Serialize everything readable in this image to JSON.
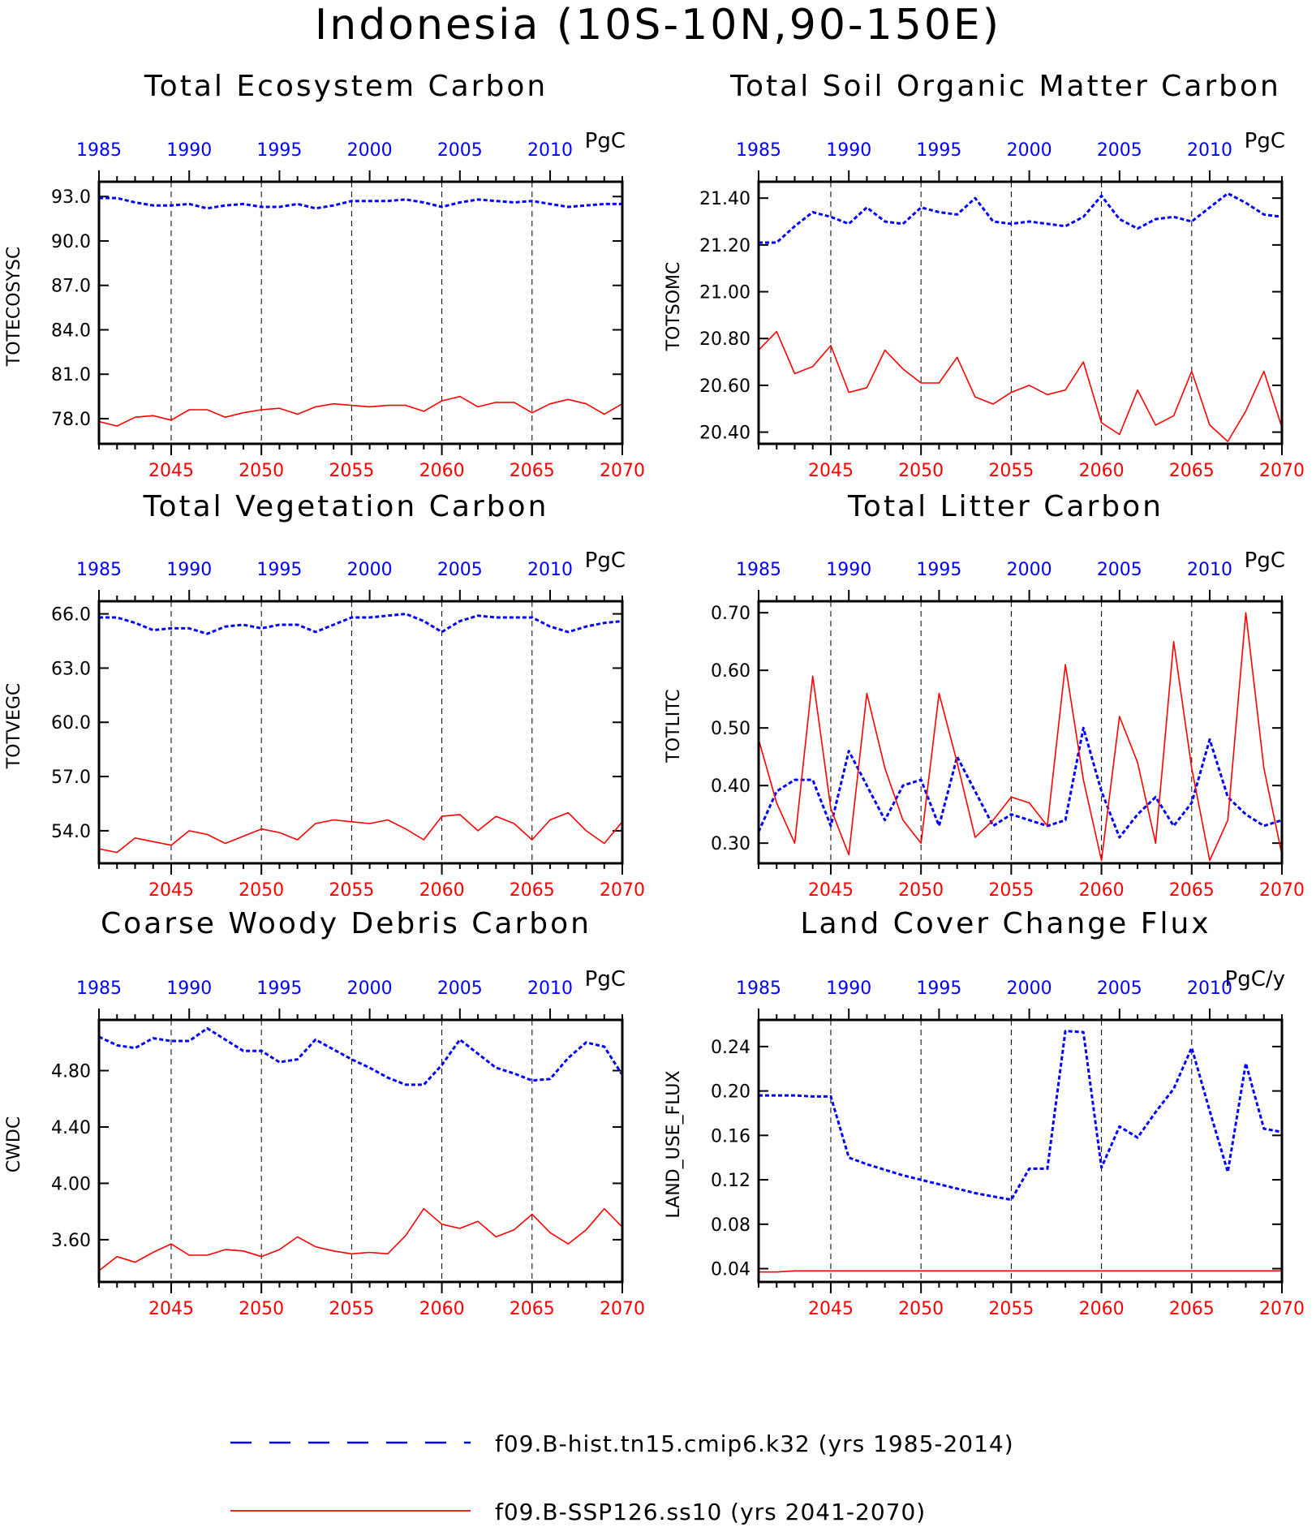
{
  "title": "Indonesia (10S-10N,90-150E)",
  "colors": {
    "hist": "#0000ff",
    "ssp": "#ff0000",
    "axis": "#000000"
  },
  "legend": [
    {
      "label": "f09.B-hist.tn15.cmip6.k32 (yrs 1985-2014)",
      "color": "#0000ff",
      "style": "dashed"
    },
    {
      "label": "f09.B-SSP126.ss10 (yrs 2041-2070)",
      "color": "#ff0000",
      "style": "solid"
    }
  ],
  "top_axis_ticks": [
    "1985",
    "1990",
    "1995",
    "2000",
    "2005",
    "2010"
  ],
  "bottom_axis_ticks": [
    "2045",
    "2050",
    "2055",
    "2060",
    "2065",
    "2070"
  ],
  "chart_data": [
    {
      "type": "line",
      "title": "Total Ecosystem Carbon",
      "ylabel": "TOTECOSYSC",
      "units": "PgC",
      "ylim": [
        76.3,
        94.0
      ],
      "yticks": [
        78.0,
        81.0,
        84.0,
        87.0,
        90.0,
        93.0
      ],
      "ytick_labels": [
        "78.0",
        "81.0",
        "84.0",
        "87.0",
        "90.0",
        "93.0"
      ],
      "x_top": [
        1985,
        1986,
        1987,
        1988,
        1989,
        1990,
        1991,
        1992,
        1993,
        1994,
        1995,
        1996,
        1997,
        1998,
        1999,
        2000,
        2001,
        2002,
        2003,
        2004,
        2005,
        2006,
        2007,
        2008,
        2009,
        2010,
        2011,
        2012,
        2013,
        2014
      ],
      "x_bottom": [
        2041,
        2042,
        2043,
        2044,
        2045,
        2046,
        2047,
        2048,
        2049,
        2050,
        2051,
        2052,
        2053,
        2054,
        2055,
        2056,
        2057,
        2058,
        2059,
        2060,
        2061,
        2062,
        2063,
        2064,
        2065,
        2066,
        2067,
        2068,
        2069,
        2070
      ],
      "series": [
        {
          "name": "f09.B-hist.tn15.cmip6.k32 (yrs 1985-2014)",
          "axis": "top",
          "values": [
            92.9,
            92.9,
            92.6,
            92.4,
            92.4,
            92.5,
            92.2,
            92.4,
            92.5,
            92.3,
            92.3,
            92.5,
            92.2,
            92.4,
            92.7,
            92.7,
            92.7,
            92.8,
            92.6,
            92.3,
            92.6,
            92.8,
            92.7,
            92.6,
            92.7,
            92.5,
            92.3,
            92.4,
            92.5,
            92.5
          ]
        },
        {
          "name": "f09.B-SSP126.ss10 (yrs 2041-2070)",
          "axis": "bottom",
          "values": [
            77.8,
            77.5,
            78.1,
            78.2,
            77.9,
            78.6,
            78.6,
            78.1,
            78.4,
            78.6,
            78.7,
            78.3,
            78.8,
            79.0,
            78.9,
            78.8,
            78.9,
            78.9,
            78.5,
            79.2,
            79.5,
            78.8,
            79.1,
            79.1,
            78.4,
            79.0,
            79.3,
            79.0,
            78.3,
            79.0
          ]
        }
      ]
    },
    {
      "type": "line",
      "title": "Total Soil Organic Matter Carbon",
      "ylabel": "TOTSOMC",
      "units": "PgC",
      "ylim": [
        20.35,
        21.47
      ],
      "yticks": [
        20.4,
        20.6,
        20.8,
        21.0,
        21.2,
        21.4
      ],
      "ytick_labels": [
        "20.40",
        "20.60",
        "20.80",
        "21.00",
        "21.20",
        "21.40"
      ],
      "x_top": [
        1985,
        1986,
        1987,
        1988,
        1989,
        1990,
        1991,
        1992,
        1993,
        1994,
        1995,
        1996,
        1997,
        1998,
        1999,
        2000,
        2001,
        2002,
        2003,
        2004,
        2005,
        2006,
        2007,
        2008,
        2009,
        2010,
        2011,
        2012,
        2013,
        2014
      ],
      "x_bottom": [
        2041,
        2042,
        2043,
        2044,
        2045,
        2046,
        2047,
        2048,
        2049,
        2050,
        2051,
        2052,
        2053,
        2054,
        2055,
        2056,
        2057,
        2058,
        2059,
        2060,
        2061,
        2062,
        2063,
        2064,
        2065,
        2066,
        2067,
        2068,
        2069,
        2070
      ],
      "series": [
        {
          "name": "f09.B-hist.tn15.cmip6.k32 (yrs 1985-2014)",
          "axis": "top",
          "values": [
            21.21,
            21.21,
            21.28,
            21.34,
            21.32,
            21.29,
            21.36,
            21.3,
            21.29,
            21.36,
            21.34,
            21.33,
            21.4,
            21.3,
            21.29,
            21.3,
            21.29,
            21.28,
            21.32,
            21.41,
            21.31,
            21.27,
            21.31,
            21.32,
            21.3,
            21.36,
            21.42,
            21.38,
            21.33,
            21.32
          ]
        },
        {
          "name": "f09.B-SSP126.ss10 (yrs 2041-2070)",
          "axis": "bottom",
          "values": [
            20.75,
            20.83,
            20.65,
            20.68,
            20.77,
            20.57,
            20.59,
            20.75,
            20.67,
            20.61,
            20.61,
            20.72,
            20.55,
            20.52,
            20.57,
            20.6,
            20.56,
            20.58,
            20.7,
            20.44,
            20.39,
            20.58,
            20.43,
            20.47,
            20.66,
            20.43,
            20.36,
            20.49,
            20.66,
            20.42
          ]
        }
      ]
    },
    {
      "type": "line",
      "title": "Total Vegetation Carbon",
      "ylabel": "TOTVEGC",
      "units": "PgC",
      "ylim": [
        52.2,
        66.7
      ],
      "yticks": [
        54.0,
        57.0,
        60.0,
        63.0,
        66.0
      ],
      "ytick_labels": [
        "54.0",
        "57.0",
        "60.0",
        "63.0",
        "66.0"
      ],
      "x_top": [
        1985,
        1986,
        1987,
        1988,
        1989,
        1990,
        1991,
        1992,
        1993,
        1994,
        1995,
        1996,
        1997,
        1998,
        1999,
        2000,
        2001,
        2002,
        2003,
        2004,
        2005,
        2006,
        2007,
        2008,
        2009,
        2010,
        2011,
        2012,
        2013,
        2014
      ],
      "x_bottom": [
        2041,
        2042,
        2043,
        2044,
        2045,
        2046,
        2047,
        2048,
        2049,
        2050,
        2051,
        2052,
        2053,
        2054,
        2055,
        2056,
        2057,
        2058,
        2059,
        2060,
        2061,
        2062,
        2063,
        2064,
        2065,
        2066,
        2067,
        2068,
        2069,
        2070
      ],
      "series": [
        {
          "name": "f09.B-hist.tn15.cmip6.k32 (yrs 1985-2014)",
          "axis": "top",
          "values": [
            65.8,
            65.8,
            65.5,
            65.1,
            65.2,
            65.2,
            64.9,
            65.3,
            65.4,
            65.2,
            65.4,
            65.4,
            65.0,
            65.4,
            65.8,
            65.8,
            65.9,
            66.0,
            65.6,
            65.0,
            65.6,
            65.9,
            65.8,
            65.8,
            65.8,
            65.3,
            65.0,
            65.3,
            65.5,
            65.6
          ]
        },
        {
          "name": "f09.B-SSP126.ss10 (yrs 2041-2070)",
          "axis": "bottom",
          "values": [
            53.0,
            52.8,
            53.6,
            53.4,
            53.2,
            54.0,
            53.8,
            53.3,
            53.7,
            54.1,
            53.9,
            53.5,
            54.4,
            54.6,
            54.5,
            54.4,
            54.6,
            54.1,
            53.5,
            54.8,
            54.9,
            54.0,
            54.8,
            54.4,
            53.5,
            54.6,
            55.0,
            54.0,
            53.3,
            54.5
          ]
        }
      ]
    },
    {
      "type": "line",
      "title": "Total Litter Carbon",
      "ylabel": "TOTLITC",
      "units": "PgC",
      "ylim": [
        0.265,
        0.72
      ],
      "yticks": [
        0.3,
        0.4,
        0.5,
        0.6,
        0.7
      ],
      "ytick_labels": [
        "0.30",
        "0.40",
        "0.50",
        "0.60",
        "0.70"
      ],
      "x_top": [
        1985,
        1986,
        1987,
        1988,
        1989,
        1990,
        1991,
        1992,
        1993,
        1994,
        1995,
        1996,
        1997,
        1998,
        1999,
        2000,
        2001,
        2002,
        2003,
        2004,
        2005,
        2006,
        2007,
        2008,
        2009,
        2010,
        2011,
        2012,
        2013,
        2014
      ],
      "x_bottom": [
        2041,
        2042,
        2043,
        2044,
        2045,
        2046,
        2047,
        2048,
        2049,
        2050,
        2051,
        2052,
        2053,
        2054,
        2055,
        2056,
        2057,
        2058,
        2059,
        2060,
        2061,
        2062,
        2063,
        2064,
        2065,
        2066,
        2067,
        2068,
        2069,
        2070
      ],
      "series": [
        {
          "name": "f09.B-hist.tn15.cmip6.k32 (yrs 1985-2014)",
          "axis": "top",
          "values": [
            0.32,
            0.39,
            0.41,
            0.41,
            0.33,
            0.46,
            0.4,
            0.34,
            0.4,
            0.41,
            0.33,
            0.45,
            0.39,
            0.33,
            0.35,
            0.34,
            0.33,
            0.34,
            0.5,
            0.39,
            0.31,
            0.35,
            0.38,
            0.33,
            0.37,
            0.48,
            0.38,
            0.35,
            0.33,
            0.34
          ]
        },
        {
          "name": "f09.B-SSP126.ss10 (yrs 2041-2070)",
          "axis": "bottom",
          "values": [
            0.48,
            0.37,
            0.3,
            0.59,
            0.36,
            0.28,
            0.56,
            0.43,
            0.34,
            0.3,
            0.56,
            0.44,
            0.31,
            0.34,
            0.38,
            0.37,
            0.33,
            0.61,
            0.41,
            0.27,
            0.52,
            0.44,
            0.3,
            0.65,
            0.43,
            0.27,
            0.34,
            0.7,
            0.43,
            0.28
          ]
        }
      ]
    },
    {
      "type": "line",
      "title": "Coarse Woody Debris Carbon",
      "ylabel": "CWDC",
      "units": "PgC",
      "ylim": [
        3.3,
        5.16
      ],
      "yticks": [
        3.6,
        4.0,
        4.4,
        4.8
      ],
      "ytick_labels": [
        "3.60",
        "4.00",
        "4.40",
        "4.80"
      ],
      "x_top": [
        1985,
        1986,
        1987,
        1988,
        1989,
        1990,
        1991,
        1992,
        1993,
        1994,
        1995,
        1996,
        1997,
        1998,
        1999,
        2000,
        2001,
        2002,
        2003,
        2004,
        2005,
        2006,
        2007,
        2008,
        2009,
        2010,
        2011,
        2012,
        2013,
        2014
      ],
      "x_bottom": [
        2041,
        2042,
        2043,
        2044,
        2045,
        2046,
        2047,
        2048,
        2049,
        2050,
        2051,
        2052,
        2053,
        2054,
        2055,
        2056,
        2057,
        2058,
        2059,
        2060,
        2061,
        2062,
        2063,
        2064,
        2065,
        2066,
        2067,
        2068,
        2069,
        2070
      ],
      "series": [
        {
          "name": "f09.B-hist.tn15.cmip6.k32 (yrs 1985-2014)",
          "axis": "top",
          "values": [
            5.04,
            4.98,
            4.96,
            5.03,
            5.01,
            5.01,
            5.1,
            5.02,
            4.94,
            4.94,
            4.86,
            4.88,
            5.02,
            4.95,
            4.88,
            4.82,
            4.75,
            4.7,
            4.7,
            4.84,
            5.02,
            4.92,
            4.82,
            4.78,
            4.73,
            4.74,
            4.89,
            5.0,
            4.97,
            4.77
          ]
        },
        {
          "name": "f09.B-SSP126.ss10 (yrs 2041-2070)",
          "axis": "bottom",
          "values": [
            3.38,
            3.48,
            3.44,
            3.51,
            3.57,
            3.49,
            3.49,
            3.53,
            3.52,
            3.48,
            3.53,
            3.62,
            3.55,
            3.52,
            3.5,
            3.51,
            3.5,
            3.63,
            3.82,
            3.71,
            3.68,
            3.73,
            3.62,
            3.67,
            3.78,
            3.65,
            3.57,
            3.67,
            3.82,
            3.69
          ]
        }
      ]
    },
    {
      "type": "line",
      "title": "Land Cover Change Flux",
      "ylabel": "LAND_USE_FLUX",
      "units": "PgC/y",
      "ylim": [
        0.028,
        0.264
      ],
      "yticks": [
        0.04,
        0.08,
        0.12,
        0.16,
        0.2,
        0.24
      ],
      "ytick_labels": [
        "0.04",
        "0.08",
        "0.12",
        "0.16",
        "0.20",
        "0.24"
      ],
      "x_top": [
        1985,
        1986,
        1987,
        1988,
        1989,
        1990,
        1991,
        1992,
        1993,
        1994,
        1995,
        1996,
        1997,
        1998,
        1999,
        2000,
        2001,
        2002,
        2003,
        2004,
        2005,
        2006,
        2007,
        2008,
        2009,
        2010,
        2011,
        2012,
        2013,
        2014
      ],
      "x_bottom": [
        2041,
        2042,
        2043,
        2044,
        2045,
        2046,
        2047,
        2048,
        2049,
        2050,
        2051,
        2052,
        2053,
        2054,
        2055,
        2056,
        2057,
        2058,
        2059,
        2060,
        2061,
        2062,
        2063,
        2064,
        2065,
        2066,
        2067,
        2068,
        2069,
        2070
      ],
      "series": [
        {
          "name": "f09.B-hist.tn15.cmip6.k32 (yrs 1985-2014)",
          "axis": "top",
          "values": [
            0.196,
            0.196,
            0.196,
            0.195,
            0.195,
            0.14,
            0.134,
            0.129,
            0.124,
            0.12,
            0.116,
            0.112,
            0.108,
            0.105,
            0.102,
            0.13,
            0.13,
            0.254,
            0.253,
            0.131,
            0.168,
            0.158,
            0.181,
            0.202,
            0.239,
            0.182,
            0.127,
            0.225,
            0.166,
            0.163
          ]
        },
        {
          "name": "f09.B-SSP126.ss10 (yrs 2041-2070)",
          "axis": "bottom",
          "values": [
            0.037,
            0.037,
            0.038,
            0.038,
            0.038,
            0.038,
            0.038,
            0.038,
            0.038,
            0.038,
            0.038,
            0.038,
            0.038,
            0.038,
            0.038,
            0.038,
            0.038,
            0.038,
            0.038,
            0.038,
            0.038,
            0.038,
            0.038,
            0.038,
            0.038,
            0.038,
            0.038,
            0.038,
            0.038,
            0.038
          ]
        }
      ]
    }
  ]
}
